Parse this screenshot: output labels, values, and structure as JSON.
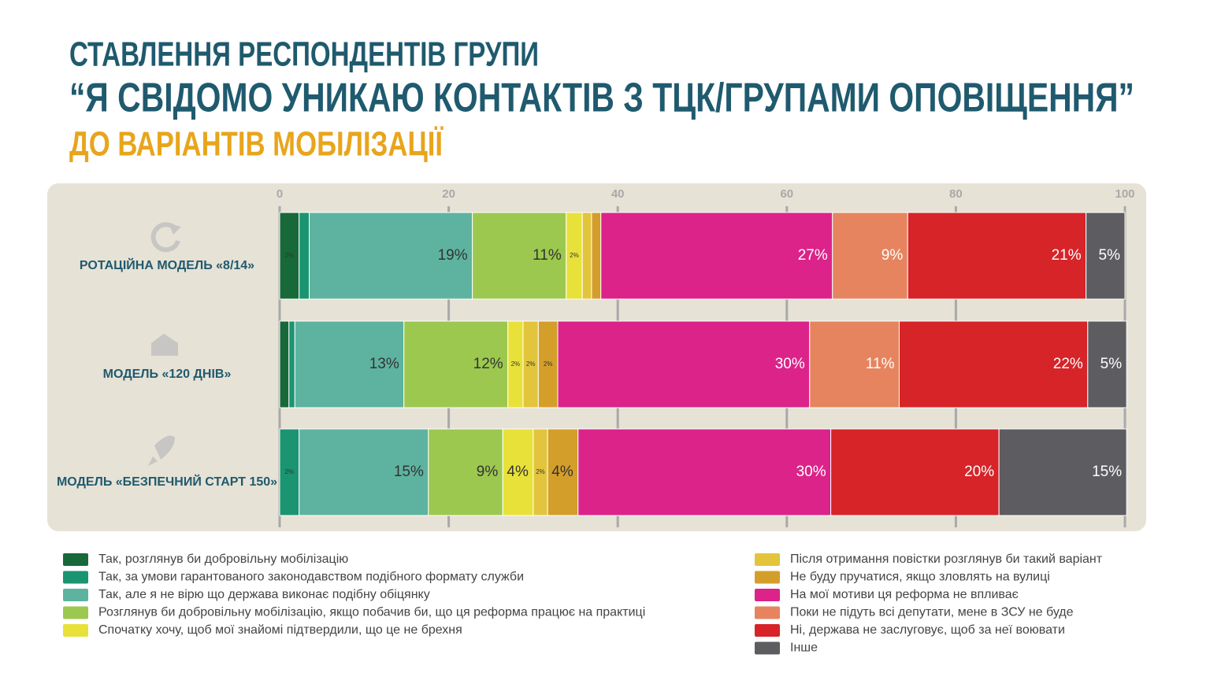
{
  "chart_data": {
    "type": "stacked-bar-horizontal",
    "title": [
      "СТАВЛЕННЯ РЕСПОНДЕНТІВ ГРУПИ",
      "“Я СВІДОМО УНИКАЮ КОНТАКТІВ З ТЦК/ГРУПАМИ ОПОВІЩЕННЯ”",
      "ДО ВАРІАНТІВ МОБІЛІЗАЦІЇ"
    ],
    "categories": [
      "РОТАЦІЙНА МОДЕЛЬ «8/14»",
      "МОДЕЛЬ «120 ДНІВ»",
      "МОДЕЛЬ «БЕЗПЕЧНИЙ СТАРТ 150»"
    ],
    "xlim": [
      0,
      100
    ],
    "xticks": [
      0,
      20,
      40,
      60,
      80,
      100
    ],
    "grid": true,
    "series": [
      {
        "name": "Так, розглянув би добровільну мобілізацію",
        "color": "#17693a",
        "values": [
          2.3,
          1.1,
          0
        ],
        "value_labels": [
          "2%",
          null,
          null
        ]
      },
      {
        "name": "Так, за умови гарантованого законодавством подібного формату служби",
        "color": "#1a9471",
        "values": [
          1.2,
          0.7,
          2.3
        ],
        "value_labels": [
          null,
          null,
          "2%"
        ]
      },
      {
        "name": "Так, але я не вірю що держава виконає подібну обіцянку",
        "color": "#5eb3a0",
        "values": [
          19.3,
          12.9,
          15.3
        ],
        "value_labels": [
          "19%",
          "13%",
          "15%"
        ]
      },
      {
        "name": "Розглянув би добровільну мобілізацію, якщо побачив би, що ця реформа працює на практиці",
        "color": "#9cc84f",
        "values": [
          11.1,
          12.3,
          8.8
        ],
        "value_labels": [
          "11%",
          "12%",
          "9%"
        ]
      },
      {
        "name": "Спочатку хочу, щоб мої знайомі підтвердили, що це не брехня",
        "color": "#e8e13a",
        "values": [
          1.9,
          1.8,
          3.6
        ],
        "value_labels": [
          "2%",
          "2%",
          "4%"
        ]
      },
      {
        "name": "Після отримання повістки розглянув би такий варіант",
        "color": "#e2c53c",
        "values": [
          1.1,
          1.8,
          1.7
        ],
        "value_labels": [
          null,
          "2%",
          "2%"
        ]
      },
      {
        "name": "Не буду пручатися, якщо зловлять на вулиці",
        "color": "#d49e2a",
        "values": [
          1.1,
          2.3,
          3.6
        ],
        "value_labels": [
          null,
          "2%",
          "4%"
        ]
      },
      {
        "name": "На мої мотиви ця реформа не впливає",
        "color": "#dc2389",
        "values": [
          27.4,
          29.8,
          29.9
        ],
        "value_labels": [
          "27%",
          "30%",
          "30%"
        ]
      },
      {
        "name": "Поки не підуть всі депутати, мене в ЗСУ не буде",
        "color": "#e6845f",
        "values": [
          8.9,
          10.6,
          0
        ],
        "value_labels": [
          "9%",
          "11%",
          null
        ]
      },
      {
        "name": "Ні, держава не заслуговує, щоб за неї воювати",
        "color": "#d62429",
        "values": [
          21.1,
          22.3,
          19.9
        ],
        "value_labels": [
          "21%",
          "22%",
          "20%"
        ]
      },
      {
        "name": "Інше",
        "color": "#5d5c60",
        "values": [
          4.6,
          4.6,
          15.1
        ],
        "value_labels": [
          "5%",
          "5%",
          "15%"
        ]
      }
    ]
  }
}
